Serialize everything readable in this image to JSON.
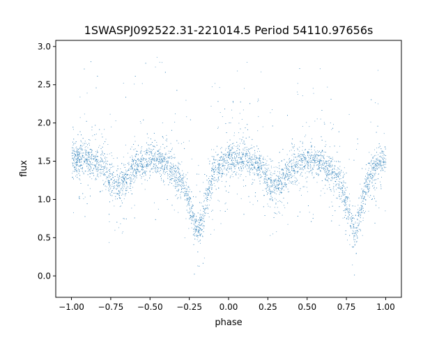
{
  "chart_data": {
    "type": "scatter",
    "title": "1SWASPJ092522.31-221014.5 Period 54110.97656s",
    "xlabel": "phase",
    "ylabel": "flux",
    "xlim": [
      -1.1,
      1.1
    ],
    "ylim": [
      -0.28,
      3.08
    ],
    "xticks": [
      -1.0,
      -0.75,
      -0.5,
      -0.25,
      0.0,
      0.25,
      0.5,
      0.75,
      1.0
    ],
    "xtick_labels": [
      "−1.00",
      "−0.75",
      "−0.50",
      "−0.25",
      "0.00",
      "0.25",
      "0.50",
      "0.75",
      "1.00"
    ],
    "yticks": [
      0.0,
      0.5,
      1.0,
      1.5,
      2.0,
      2.5,
      3.0
    ],
    "ytick_labels": [
      "0.0",
      "0.5",
      "1.0",
      "1.5",
      "2.0",
      "2.5",
      "3.0"
    ],
    "grid": false,
    "point_color": "#1f77b4",
    "light_curve_profile": {
      "phase": [
        -1.0,
        -0.9,
        -0.8,
        -0.75,
        -0.7,
        -0.65,
        -0.6,
        -0.5,
        -0.4,
        -0.3,
        -0.25,
        -0.2,
        -0.15,
        -0.1,
        0.0,
        0.1,
        0.2,
        0.25,
        0.3,
        0.35,
        0.4,
        0.5,
        0.6,
        0.7,
        0.75,
        0.8,
        0.85,
        0.9,
        1.0
      ],
      "flux": [
        1.52,
        1.55,
        1.42,
        1.28,
        1.18,
        1.28,
        1.42,
        1.52,
        1.48,
        1.25,
        0.95,
        0.55,
        0.95,
        1.35,
        1.52,
        1.55,
        1.42,
        1.28,
        1.18,
        1.28,
        1.42,
        1.52,
        1.48,
        1.25,
        0.95,
        0.55,
        0.95,
        1.35,
        1.52
      ]
    }
  }
}
